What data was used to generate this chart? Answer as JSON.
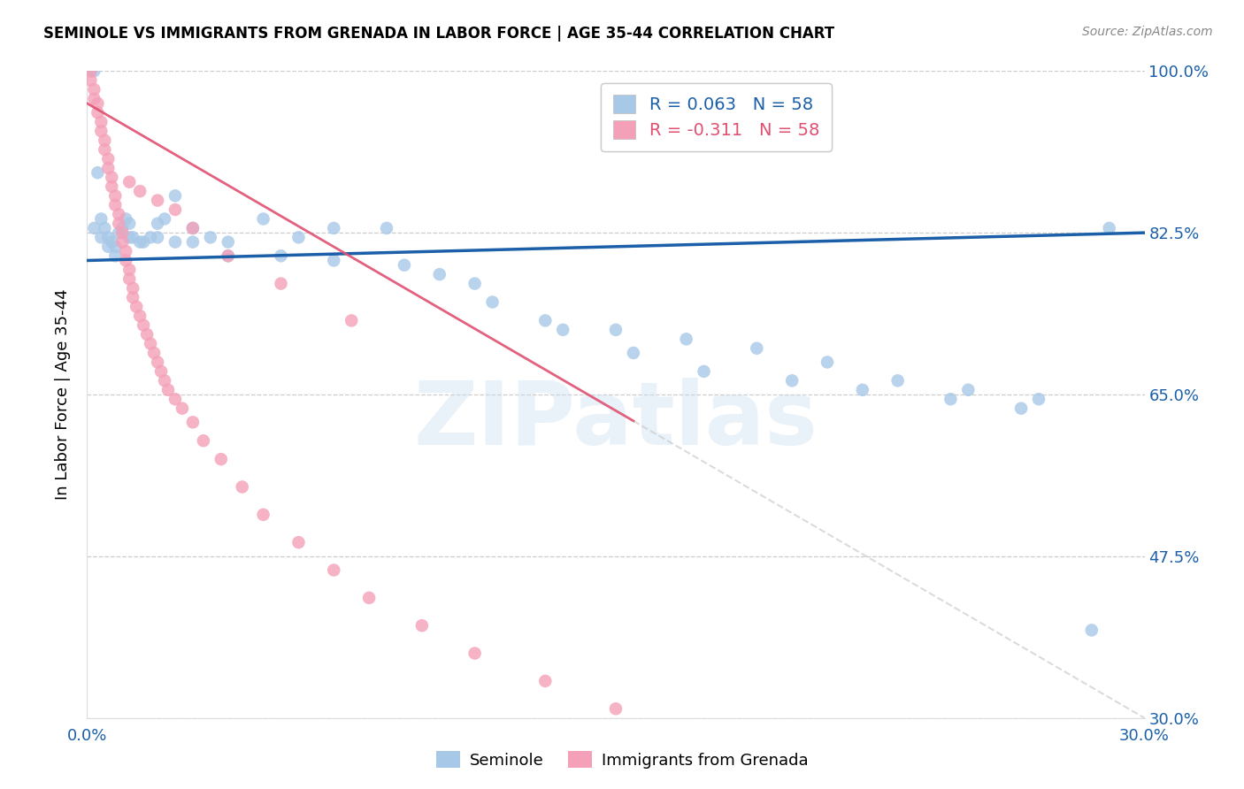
{
  "title": "SEMINOLE VS IMMIGRANTS FROM GRENADA IN LABOR FORCE | AGE 35-44 CORRELATION CHART",
  "source": "Source: ZipAtlas.com",
  "ylabel": "In Labor Force | Age 35-44",
  "xlim": [
    0.0,
    0.3
  ],
  "ylim": [
    0.3,
    1.0
  ],
  "xticks": [
    0.0,
    0.05,
    0.1,
    0.15,
    0.2,
    0.25,
    0.3
  ],
  "yticks": [
    0.3,
    0.475,
    0.65,
    0.825,
    1.0
  ],
  "ytick_labels": [
    "30.0%",
    "47.5%",
    "65.0%",
    "82.5%",
    "100.0%"
  ],
  "legend_labels": [
    "Seminole",
    "Immigrants from Grenada"
  ],
  "r_seminole": 0.063,
  "n_seminole": 58,
  "r_grenada": -0.311,
  "n_grenada": 58,
  "seminole_color": "#a8c8e8",
  "grenada_color": "#f4a0b8",
  "trend_seminole_color": "#1a5fa8",
  "trend_grenada_color": "#e05070",
  "watermark": "ZIPatlas",
  "seminole_x": [
    0.001,
    0.002,
    0.003,
    0.004,
    0.005,
    0.006,
    0.007,
    0.008,
    0.009,
    0.01,
    0.011,
    0.012,
    0.013,
    0.015,
    0.018,
    0.02,
    0.022,
    0.025,
    0.03,
    0.035,
    0.04,
    0.05,
    0.06,
    0.07,
    0.085,
    0.1,
    0.115,
    0.13,
    0.15,
    0.17,
    0.19,
    0.21,
    0.23,
    0.25,
    0.27,
    0.29,
    0.002,
    0.004,
    0.006,
    0.008,
    0.012,
    0.016,
    0.02,
    0.025,
    0.03,
    0.04,
    0.055,
    0.07,
    0.09,
    0.11,
    0.135,
    0.155,
    0.175,
    0.2,
    0.22,
    0.245,
    0.265,
    0.285
  ],
  "seminole_y": [
    1.0,
    1.0,
    0.89,
    0.84,
    0.83,
    0.82,
    0.815,
    0.81,
    0.825,
    0.83,
    0.84,
    0.835,
    0.82,
    0.815,
    0.82,
    0.835,
    0.84,
    0.865,
    0.83,
    0.82,
    0.815,
    0.84,
    0.82,
    0.83,
    0.83,
    0.78,
    0.75,
    0.73,
    0.72,
    0.71,
    0.7,
    0.685,
    0.665,
    0.655,
    0.645,
    0.83,
    0.83,
    0.82,
    0.81,
    0.8,
    0.82,
    0.815,
    0.82,
    0.815,
    0.815,
    0.8,
    0.8,
    0.795,
    0.79,
    0.77,
    0.72,
    0.695,
    0.675,
    0.665,
    0.655,
    0.645,
    0.635,
    0.395
  ],
  "grenada_x": [
    0.001,
    0.001,
    0.002,
    0.002,
    0.003,
    0.003,
    0.004,
    0.004,
    0.005,
    0.005,
    0.006,
    0.006,
    0.007,
    0.007,
    0.008,
    0.008,
    0.009,
    0.009,
    0.01,
    0.01,
    0.011,
    0.011,
    0.012,
    0.012,
    0.013,
    0.013,
    0.014,
    0.015,
    0.016,
    0.017,
    0.018,
    0.019,
    0.02,
    0.021,
    0.022,
    0.023,
    0.025,
    0.027,
    0.03,
    0.033,
    0.038,
    0.044,
    0.05,
    0.06,
    0.07,
    0.08,
    0.095,
    0.11,
    0.13,
    0.15,
    0.012,
    0.015,
    0.02,
    0.025,
    0.03,
    0.04,
    0.055,
    0.075
  ],
  "grenada_y": [
    1.0,
    0.99,
    0.98,
    0.97,
    0.965,
    0.955,
    0.945,
    0.935,
    0.925,
    0.915,
    0.905,
    0.895,
    0.885,
    0.875,
    0.865,
    0.855,
    0.845,
    0.835,
    0.825,
    0.815,
    0.805,
    0.795,
    0.785,
    0.775,
    0.765,
    0.755,
    0.745,
    0.735,
    0.725,
    0.715,
    0.705,
    0.695,
    0.685,
    0.675,
    0.665,
    0.655,
    0.645,
    0.635,
    0.62,
    0.6,
    0.58,
    0.55,
    0.52,
    0.49,
    0.46,
    0.43,
    0.4,
    0.37,
    0.34,
    0.31,
    0.88,
    0.87,
    0.86,
    0.85,
    0.83,
    0.8,
    0.77,
    0.73
  ],
  "trend_sem_x0": 0.0,
  "trend_sem_y0": 0.795,
  "trend_sem_x1": 0.3,
  "trend_sem_y1": 0.825,
  "trend_gre_x0": 0.0,
  "trend_gre_y0": 0.965,
  "trend_gre_x1": 0.3,
  "trend_gre_y1": 0.3
}
